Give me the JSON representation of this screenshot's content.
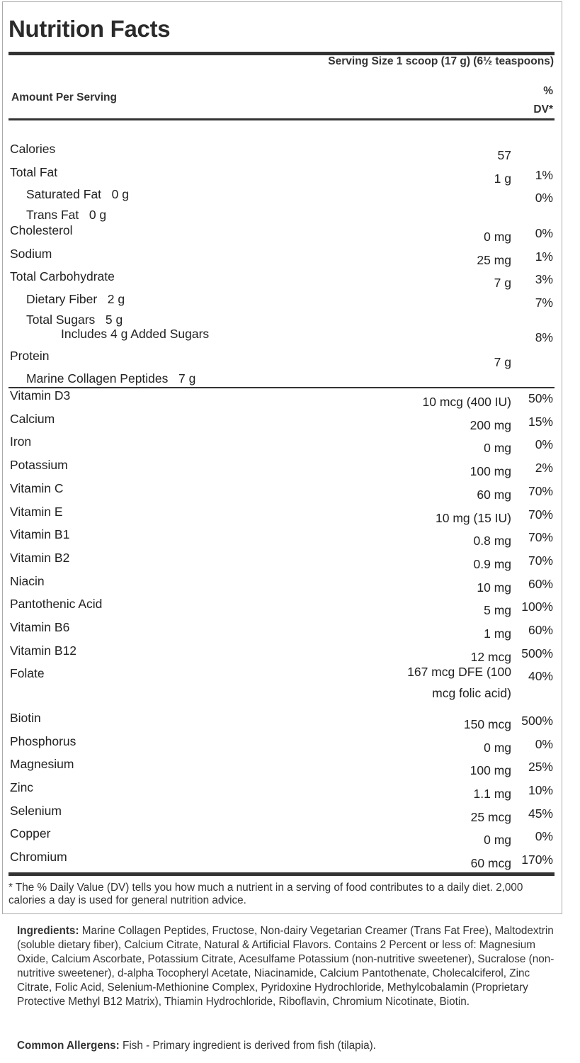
{
  "header": {
    "title": "Nutrition Facts",
    "serving_size": "Serving Size 1 scoop (17 g) (6½ teaspoons)",
    "amount_per_serving": "Amount Per Serving",
    "dv_pct": "%",
    "dv_label": "DV*"
  },
  "nutrients": [
    {
      "label": "Calories",
      "amount": "57",
      "dv": "",
      "level": 0
    },
    {
      "label": "Total Fat",
      "amount": "1 g",
      "dv": "1%",
      "level": 0
    },
    {
      "label": "Saturated Fat   0 g",
      "amount": "",
      "dv": "0%",
      "level": 1
    },
    {
      "label": "Trans Fat   0 g",
      "amount": "",
      "dv": "",
      "level": 1
    },
    {
      "label": "Cholesterol",
      "amount": "0 mg",
      "dv": "0%",
      "level": 0
    },
    {
      "label": "Sodium",
      "amount": "25 mg",
      "dv": "1%",
      "level": 0
    },
    {
      "label": "Total Carbohydrate",
      "amount": "7 g",
      "dv": "3%",
      "level": 0
    },
    {
      "label": "Dietary Fiber   2 g",
      "amount": "",
      "dv": "7%",
      "level": 1
    },
    {
      "label": "Total Sugars   5 g",
      "amount": "",
      "dv": "",
      "level": 1
    },
    {
      "label": "Includes 4 g Added Sugars",
      "amount": "",
      "dv": "8%",
      "level": 2
    },
    {
      "label": "Protein",
      "amount": "7 g",
      "dv": "",
      "level": 0
    },
    {
      "label": "Marine Collagen Peptides   7 g",
      "amount": "",
      "dv": "",
      "level": 1
    }
  ],
  "vitamins": [
    {
      "label": "Vitamin D3",
      "amount": "10 mcg (400 IU)",
      "dv": "50%"
    },
    {
      "label": "Calcium",
      "amount": "200 mg",
      "dv": "15%"
    },
    {
      "label": "Iron",
      "amount": "0 mg",
      "dv": "0%"
    },
    {
      "label": "Potassium",
      "amount": "100 mg",
      "dv": "2%"
    },
    {
      "label": "Vitamin C",
      "amount": "60 mg",
      "dv": "70%"
    },
    {
      "label": "Vitamin E",
      "amount": "10 mg (15 IU)",
      "dv": "70%"
    },
    {
      "label": "Vitamin B1",
      "amount": "0.8 mg",
      "dv": "70%"
    },
    {
      "label": "Vitamin B2",
      "amount": "0.9 mg",
      "dv": "70%"
    },
    {
      "label": "Niacin",
      "amount": "10 mg",
      "dv": "60%"
    },
    {
      "label": "Pantothenic Acid",
      "amount": "5 mg",
      "dv": "100%"
    },
    {
      "label": "Vitamin B6",
      "amount": "1 mg",
      "dv": "60%"
    },
    {
      "label": "Vitamin B12",
      "amount": "12 mcg",
      "dv": "500%"
    },
    {
      "label": "Folate",
      "amount": "167 mcg DFE (100 mcg folic acid)",
      "dv": "40%"
    },
    {
      "label": "Biotin",
      "amount": "150 mcg",
      "dv": "500%"
    },
    {
      "label": "Phosphorus",
      "amount": "0 mg",
      "dv": "0%"
    },
    {
      "label": "Magnesium",
      "amount": "100 mg",
      "dv": "25%"
    },
    {
      "label": "Zinc",
      "amount": "1.1 mg",
      "dv": "10%"
    },
    {
      "label": "Selenium",
      "amount": "25 mcg",
      "dv": "45%"
    },
    {
      "label": "Copper",
      "amount": "0 mg",
      "dv": "0%"
    },
    {
      "label": "Chromium",
      "amount": "60 mcg",
      "dv": "170%"
    }
  ],
  "footnote": "* The % Daily Value (DV) tells you how much a nutrient in a serving of food contributes to a daily diet. 2,000 calories a day is used for general nutrition advice.",
  "ingredients": {
    "label": "Ingredients:",
    "text": " Marine Collagen Peptides, Fructose, Non-dairy Vegetarian Creamer (Trans Fat Free), Maltodextrin (soluble dietary fiber), Calcium Citrate, Natural & Artificial Flavors. Contains 2 Percent or less of: Magnesium Oxide, Calcium Ascorbate, Potassium Citrate, Acesulfame Potassium (non-nutritive sweetener), Sucralose (non-nutritive sweetener), d-alpha Tocopheryl Acetate, Niacinamide, Calcium Pantothenate, Cholecalciferol, Zinc Citrate, Folic Acid, Selenium-Methionine Complex, Pyridoxine Hydrochloride, Methylcobalamin (Proprietary Protective Methyl B12 Matrix), Thiamin Hydrochloride, Riboflavin, Chromium Nicotinate, Biotin."
  },
  "allergens": {
    "label": "Common Allergens:",
    "text": " Fish - Primary ingredient is derived from fish (tilapia)."
  }
}
